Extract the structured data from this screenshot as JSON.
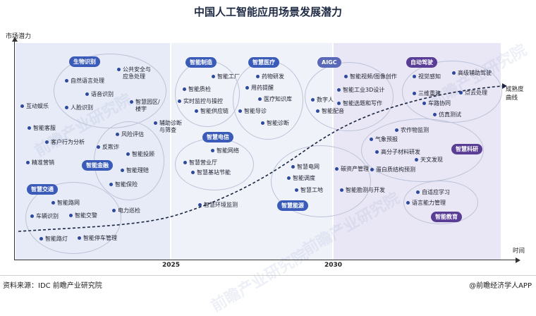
{
  "chart_data": {
    "type": "bubble-landscape",
    "title": "中国人工智能应用场景发展潜力",
    "ylabel": "市场潜力",
    "xlabel": "时间",
    "x_ticks": [
      "2025",
      "2030"
    ],
    "curve_label": "成熟度\n曲线",
    "groups": [
      {
        "name": "生物识别",
        "color": "#3a5bb8",
        "items": [
          "公共安全与应急处理",
          "自然语言处理",
          "语音识别",
          "人脸识别",
          "互动娱乐",
          "智慧园区/楼宇"
        ]
      },
      {
        "name": "智能金融",
        "color": "#3a5bb8",
        "items": [
          "智能客服",
          "风险评估",
          "客户行为分析",
          "反欺诈",
          "精准营销",
          "智能投顾",
          "智能理赔",
          "智能保险",
          "辅助诊断与筛查"
        ]
      },
      {
        "name": "智慧交通",
        "color": "#3a5bb8",
        "items": [
          "智能路网",
          "车辆识别",
          "智能交警",
          "电力巡检",
          "智能路灯",
          "智能停车管理"
        ]
      },
      {
        "name": "智能制造",
        "color": "#3a5bb8",
        "items": [
          "智能工厂",
          "智能质检",
          "实时监控与操控",
          "智能供应链"
        ]
      },
      {
        "name": "智慧医疗",
        "color": "#3a5bb8",
        "items": [
          "药物研发",
          "用药提醒",
          "医疗知识库",
          "智能导诊",
          "智能诊断"
        ]
      },
      {
        "name": "智慧电信",
        "color": "#3a5bb8",
        "items": [
          "智能网络",
          "智慧营业厅",
          "智慧基站节能"
        ]
      },
      {
        "name": "智慧能源",
        "color": "#3a5bb8",
        "items": [
          "智慧电网",
          "智能调度",
          "智慧工地",
          "智慧环境监测"
        ]
      },
      {
        "name": "AIGC",
        "color": "#5a68b8",
        "items": [
          "智能视频/图像创作",
          "智能工业3D设计",
          "智能选题和写作",
          "数字人",
          "智能配音"
        ]
      },
      {
        "name": "自动驾驶",
        "color": "#5a3e96",
        "items": [
          "视觉感知",
          "高级辅助驾驶",
          "三维重建",
          "点云处理",
          "车路协同",
          "仿真测试"
        ]
      },
      {
        "name": "智慧科研",
        "color": "#5a3e96",
        "items": [
          "农作物监测",
          "气象预报",
          "高分子材料研发",
          "天文发现",
          "蛋白质结构预测",
          "碳资产管理",
          "智能勘测与开发"
        ]
      },
      {
        "name": "智能教育",
        "color": "#5a3e96",
        "items": [
          "自适应学习",
          "语言能力管理"
        ]
      }
    ]
  },
  "labels": {
    "g1": "生物识别",
    "g2": "智能金融",
    "g3": "智慧交通",
    "g4": "智能制造",
    "g5": "智慧医疗",
    "g6": "智慧电信",
    "g7": "智慧能源",
    "g8": "AIGC",
    "g9": "自动驾驶",
    "g10": "智慧科研",
    "g11": "智能教育",
    "bio1": "公共安全与",
    "bio1b": "应急处理",
    "bio2": "自然语言处理",
    "bio3": "语音识别",
    "bio4": "人脸识别",
    "bio5": "互动娱乐",
    "bio6": "智慧园区/",
    "bio6b": "楼宇",
    "fin1": "智能客服",
    "fin2": "风险评估",
    "fin3": "客户行为分析",
    "fin4": "反欺诈",
    "fin5": "精准营销",
    "fin6": "智能投顾",
    "fin7": "智能理赔",
    "fin8": "智能保险",
    "fin9": "辅助诊断",
    "fin9b": "与筛查",
    "tr1": "智能路网",
    "tr2": "车辆识别",
    "tr3": "智能交警",
    "tr4": "电力巡检",
    "tr5": "智能路灯",
    "tr6": "智能停车管理",
    "mf1": "智能工厂",
    "mf2": "智能质检",
    "mf3": "实时监控与操控",
    "mf4": "智能供应链",
    "md1": "药物研发",
    "md2": "用药提醒",
    "md3": "医疗知识库",
    "md4": "智能导诊",
    "md5": "智能诊断",
    "tc1": "智能网络",
    "tc2": "智慧营业厅",
    "tc3": "智慧基站节能",
    "en1": "智慧电网",
    "en2": "智能调度",
    "en3": "智慧工地",
    "en4": "智慧环境监测",
    "ai1": "智能视频/图像创作",
    "ai2": "智能工业3D设计",
    "ai3": "智能选题和写作",
    "ai4": "数字人",
    "ai5": "智能配音",
    "ad1": "视觉感知",
    "ad2": "高级辅助驾驶",
    "ad3": "三维重建",
    "ad4": "点云处理",
    "ad5": "车路协同",
    "ad6": "仿真测试",
    "sc1": "农作物监测",
    "sc2": "气象预报",
    "sc3": "高分子材料研发",
    "sc4": "天文发现",
    "sc5": "蛋白质结构预测",
    "sc6": "碳资产管理",
    "sc7": "智能勘测与开发",
    "ed1": "自适应学习",
    "ed2": "语言能力管理",
    "maturity1": "成熟度",
    "maturity2": "曲线"
  },
  "footer": {
    "source": "资料来源：IDC 前瞻产业研究院",
    "brand": "@前瞻经济学人APP"
  },
  "watermark": "前瞻产业研究院"
}
